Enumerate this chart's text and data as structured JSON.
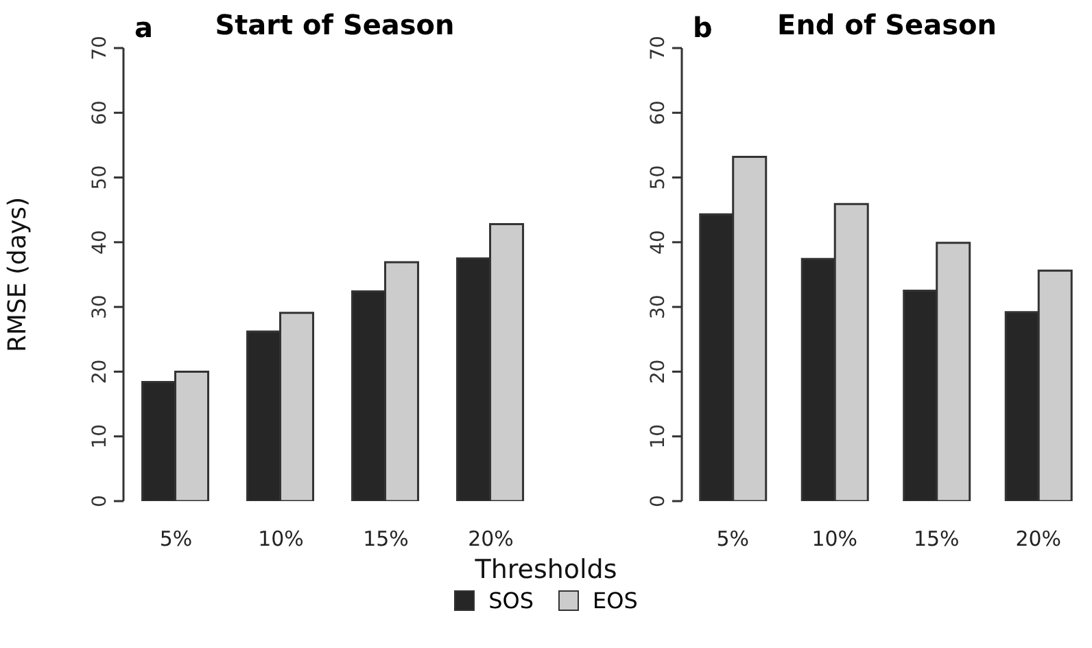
{
  "chart_data": [
    {
      "type": "bar",
      "title": "Start of Season",
      "annotations": [
        "a"
      ],
      "ylabel": "RMSE (days)",
      "xlabel": "Thresholds",
      "legend": "bottom",
      "grid": false,
      "categories": [
        "5%",
        "10%",
        "15%",
        "20%"
      ],
      "ylim": [
        0,
        70
      ],
      "yticks": [
        0,
        10,
        20,
        30,
        40,
        50,
        60,
        70
      ],
      "series": [
        {
          "name": "SOS",
          "color": "#262626",
          "values": [
            18.4,
            26.2,
            32.4,
            37.5
          ]
        },
        {
          "name": "EOS",
          "color": "#cccccc",
          "values": [
            20.0,
            29.1,
            36.9,
            42.8
          ]
        }
      ]
    },
    {
      "type": "bar",
      "title": "End of Season",
      "annotations": [
        "b"
      ],
      "grid": false,
      "categories": [
        "5%",
        "10%",
        "15%",
        "20%"
      ],
      "ylim": [
        0,
        70
      ],
      "yticks": [
        0,
        10,
        20,
        30,
        40,
        50,
        60,
        70
      ],
      "series": [
        {
          "color": "#262626",
          "values": [
            44.3,
            37.4,
            32.5,
            29.2
          ]
        },
        {
          "color": "#cccccc",
          "values": [
            53.2,
            45.9,
            39.9,
            35.6
          ]
        }
      ]
    }
  ]
}
